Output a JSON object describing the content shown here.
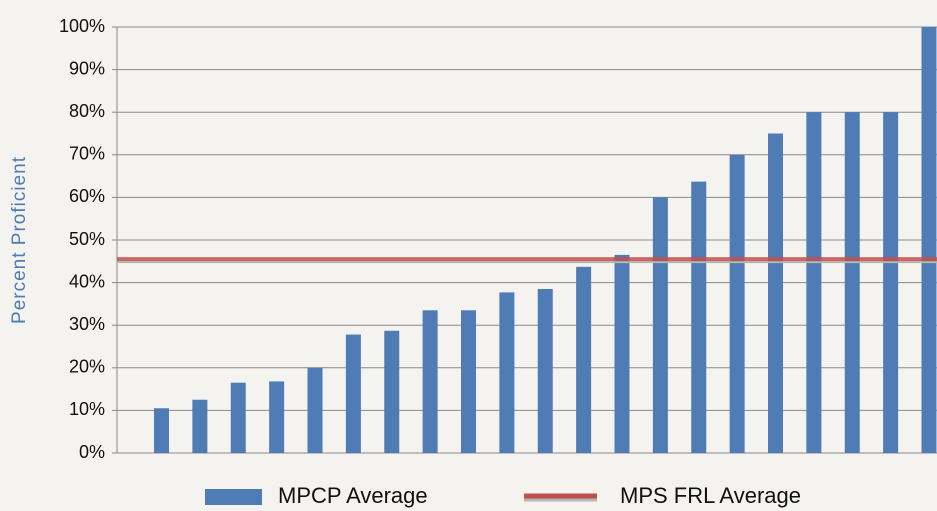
{
  "chart_data": {
    "type": "bar",
    "y_label": "Percent Proficient",
    "categories": [
      null,
      null,
      null,
      null,
      null,
      null,
      null,
      null,
      null,
      null,
      null,
      null,
      null,
      null,
      null,
      null,
      null,
      null,
      null,
      null,
      null
    ],
    "series": [
      {
        "name": "MPCP Average",
        "color": "#4f7cb5",
        "values": [
          10.5,
          12.5,
          16.5,
          16.8,
          20,
          27.8,
          28.7,
          33.5,
          33.5,
          37.7,
          38.5,
          43.7,
          46.5,
          60,
          63.7,
          70,
          75,
          80,
          80,
          80,
          100
        ]
      }
    ],
    "reference_line": {
      "name": "MPS FRL Average",
      "value": 45.5,
      "color": "#c0504d"
    },
    "ylim": [
      0,
      100
    ],
    "yticks": [
      {
        "value": 0,
        "label": "0%"
      },
      {
        "value": 10,
        "label": "10%"
      },
      {
        "value": 20,
        "label": "20%"
      },
      {
        "value": 30,
        "label": "30%"
      },
      {
        "value": 40,
        "label": "40%"
      },
      {
        "value": 50,
        "label": "50%"
      },
      {
        "value": 60,
        "label": "60%"
      },
      {
        "value": 70,
        "label": "70%"
      },
      {
        "value": 80,
        "label": "80%"
      },
      {
        "value": 90,
        "label": "90%"
      },
      {
        "value": 100,
        "label": "100%"
      }
    ],
    "grid": true
  }
}
